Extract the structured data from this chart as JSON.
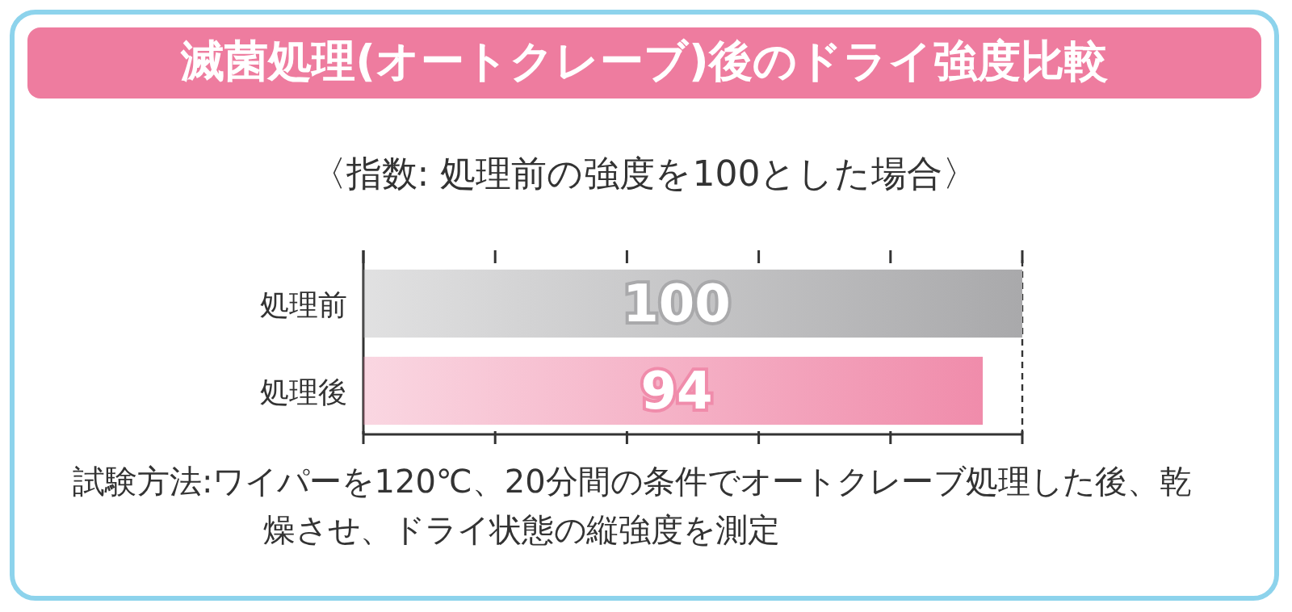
{
  "chart_data": {
    "type": "bar",
    "orientation": "horizontal",
    "title": "滅菌処理(オートクレーブ)後のドライ強度比較",
    "subtitle": "〈指数: 処理前の強度を100とした場合〉",
    "categories": [
      "処理前",
      "処理後"
    ],
    "values": [
      100,
      94
    ],
    "colors": [
      "#a9a9ab",
      "#f08cab"
    ],
    "data_labels": true,
    "xlim": [
      0,
      100
    ],
    "xticks": [
      {
        "value": 0,
        "label": null
      },
      {
        "value": 20,
        "label": null
      },
      {
        "value": 40,
        "label": null
      },
      {
        "value": 60,
        "label": null
      },
      {
        "value": 80,
        "label": null
      },
      {
        "value": 100,
        "label": null
      }
    ],
    "annotations": [
      "試験方法:ワイパーを120℃、20分間の条件でオートクレーブ処理した後、乾燥させ、ドライ状態の縦強度を測定"
    ]
  }
}
